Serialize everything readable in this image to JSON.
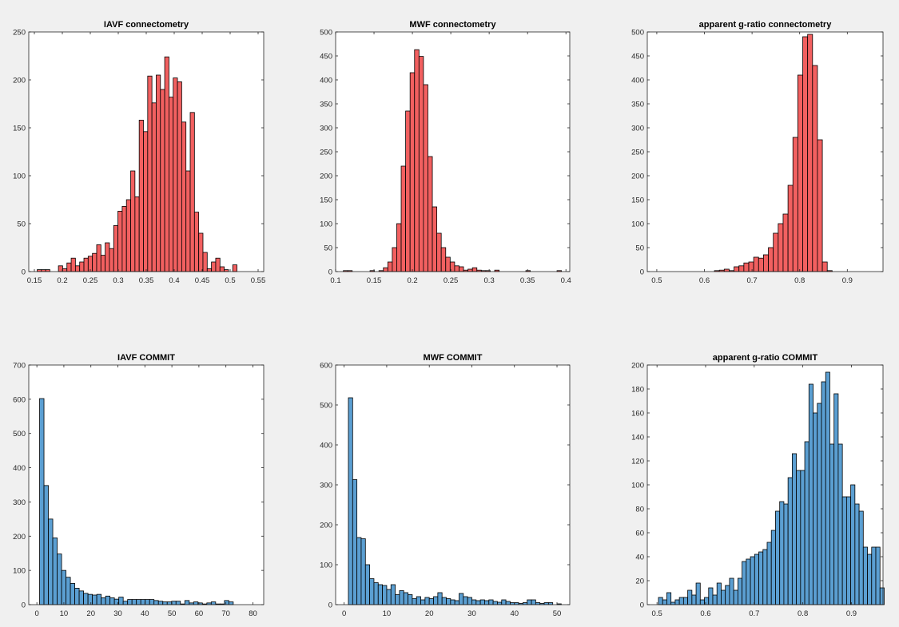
{
  "colors": {
    "red": "#f26060",
    "blue": "#5b9fd2",
    "edge": "#000000",
    "axes_bg": "#ffffff",
    "figure_bg": "#f0f0f0"
  },
  "chart_data": [
    {
      "type": "bar",
      "title": "IAVF connectometry",
      "xlabel": "",
      "ylabel": "",
      "xlim": [
        0.14,
        0.56
      ],
      "ylim": [
        0,
        250
      ],
      "xticks": [
        0.15,
        0.2,
        0.25,
        0.3,
        0.35,
        0.4,
        0.45,
        0.5,
        0.55
      ],
      "xtick_labels": [
        "0.15",
        "0.2",
        "0.25",
        "0.3",
        "0.35",
        "0.4",
        "0.45",
        "0.5",
        "0.55"
      ],
      "yticks": [
        0,
        50,
        100,
        150,
        200,
        250
      ],
      "ytick_labels": [
        "0",
        "50",
        "100",
        "150",
        "200",
        "250"
      ],
      "color": "red",
      "bin_start": 0.155,
      "bin_width": 0.0076,
      "values": [
        2,
        2,
        2,
        0,
        0,
        6,
        3,
        9,
        14,
        6,
        10,
        14,
        16,
        19,
        28,
        17,
        30,
        24,
        48,
        63,
        68,
        75,
        105,
        78,
        158,
        146,
        204,
        176,
        205,
        190,
        224,
        182,
        202,
        198,
        156,
        105,
        166,
        62,
        40,
        20,
        3,
        10,
        14,
        5,
        2,
        0,
        7
      ]
    },
    {
      "type": "bar",
      "title": "MWF connectometry",
      "xlabel": "",
      "ylabel": "",
      "xlim": [
        0.1,
        0.405
      ],
      "ylim": [
        0,
        500
      ],
      "xticks": [
        0.1,
        0.15,
        0.2,
        0.25,
        0.3,
        0.35,
        0.4
      ],
      "xtick_labels": [
        "0.1",
        "0.15",
        "0.2",
        "0.25",
        "0.3",
        "0.35",
        "0.4"
      ],
      "yticks": [
        0,
        50,
        100,
        150,
        200,
        250,
        300,
        350,
        400,
        450,
        500
      ],
      "ytick_labels": [
        "0",
        "50",
        "100",
        "150",
        "200",
        "250",
        "300",
        "350",
        "400",
        "450",
        "500"
      ],
      "color": "red",
      "bin_start": 0.11,
      "bin_width": 0.0058,
      "values": [
        2,
        2,
        0,
        0,
        0,
        0,
        2,
        0,
        2,
        8,
        20,
        50,
        100,
        220,
        335,
        415,
        463,
        449,
        390,
        240,
        135,
        80,
        50,
        30,
        20,
        12,
        10,
        3,
        5,
        8,
        3,
        2,
        2,
        0,
        3,
        0,
        0,
        0,
        0,
        0,
        0,
        2,
        0,
        0,
        0,
        0,
        0,
        0,
        2,
        0
      ]
    },
    {
      "type": "bar",
      "title": "apparent g-ratio connectometry",
      "xlabel": "",
      "ylabel": "",
      "xlim": [
        0.48,
        0.975
      ],
      "ylim": [
        0,
        500
      ],
      "xticks": [
        0.5,
        0.6,
        0.7,
        0.8,
        0.9
      ],
      "xtick_labels": [
        "0.5",
        "0.6",
        "0.7",
        "0.8",
        "0.9"
      ],
      "yticks": [
        0,
        50,
        100,
        150,
        200,
        250,
        300,
        350,
        400,
        450,
        500
      ],
      "ytick_labels": [
        "0",
        "50",
        "100",
        "150",
        "200",
        "250",
        "300",
        "350",
        "400",
        "450",
        "500"
      ],
      "color": "red",
      "bin_start": 0.621,
      "bin_width": 0.0103,
      "values": [
        2,
        3,
        5,
        2,
        10,
        12,
        18,
        20,
        30,
        28,
        35,
        50,
        80,
        100,
        120,
        180,
        280,
        410,
        490,
        495,
        430,
        275,
        20,
        2
      ]
    },
    {
      "type": "bar",
      "title": "IAVF COMMIT",
      "xlabel": "",
      "ylabel": "",
      "xlim": [
        -3,
        84
      ],
      "ylim": [
        0,
        700
      ],
      "xticks": [
        0,
        10,
        20,
        30,
        40,
        50,
        60,
        70,
        80
      ],
      "xtick_labels": [
        "0",
        "10",
        "20",
        "30",
        "40",
        "50",
        "60",
        "70",
        "80"
      ],
      "yticks": [
        0,
        100,
        200,
        300,
        400,
        500,
        600,
        700
      ],
      "ytick_labels": [
        "0",
        "100",
        "200",
        "300",
        "400",
        "500",
        "600",
        "700"
      ],
      "color": "blue",
      "bin_start": 1.0,
      "bin_width": 1.63,
      "values": [
        602,
        348,
        250,
        195,
        148,
        100,
        80,
        62,
        48,
        40,
        33,
        30,
        28,
        30,
        20,
        25,
        20,
        16,
        22,
        10,
        15,
        15,
        15,
        15,
        15,
        15,
        12,
        10,
        8,
        8,
        10,
        10,
        2,
        12,
        5,
        8,
        5,
        2,
        5,
        8,
        2,
        2,
        12,
        8
      ]
    },
    {
      "type": "bar",
      "title": "MWF COMMIT",
      "xlabel": "",
      "ylabel": "",
      "xlim": [
        -2,
        53
      ],
      "ylim": [
        0,
        600
      ],
      "xticks": [
        0,
        10,
        20,
        30,
        40,
        50
      ],
      "xtick_labels": [
        "0",
        "10",
        "20",
        "30",
        "40",
        "50"
      ],
      "yticks": [
        0,
        100,
        200,
        300,
        400,
        500,
        600
      ],
      "ytick_labels": [
        "0",
        "100",
        "200",
        "300",
        "400",
        "500",
        "600"
      ],
      "color": "blue",
      "bin_start": 1.0,
      "bin_width": 1.0,
      "values": [
        518,
        313,
        168,
        165,
        100,
        65,
        55,
        50,
        48,
        38,
        50,
        25,
        35,
        30,
        25,
        15,
        20,
        12,
        18,
        15,
        20,
        30,
        18,
        15,
        12,
        10,
        28,
        20,
        18,
        12,
        10,
        12,
        10,
        12,
        8,
        6,
        12,
        8,
        5,
        5,
        3,
        5,
        12,
        12,
        5,
        3,
        5,
        5,
        0,
        2
      ]
    },
    {
      "type": "bar",
      "title": "apparent g-ratio COMMIT",
      "xlabel": "",
      "ylabel": "",
      "xlim": [
        0.48,
        0.965
      ],
      "ylim": [
        0,
        200
      ],
      "xticks": [
        0.5,
        0.6,
        0.7,
        0.8,
        0.9
      ],
      "xtick_labels": [
        "0.5",
        "0.6",
        "0.7",
        "0.8",
        "0.9"
      ],
      "yticks": [
        0,
        20,
        40,
        60,
        80,
        100,
        120,
        140,
        160,
        180,
        200
      ],
      "ytick_labels": [
        "0",
        "20",
        "40",
        "60",
        "80",
        "100",
        "120",
        "140",
        "160",
        "180",
        "200"
      ],
      "color": "blue",
      "bin_start": 0.503,
      "bin_width": 0.0086,
      "values": [
        6,
        4,
        10,
        2,
        4,
        6,
        6,
        12,
        8,
        18,
        4,
        6,
        14,
        8,
        18,
        12,
        16,
        22,
        12,
        22,
        36,
        38,
        40,
        42,
        44,
        46,
        52,
        62,
        78,
        86,
        84,
        106,
        126,
        112,
        112,
        136,
        184,
        160,
        168,
        186,
        194,
        134,
        176,
        134,
        90,
        90,
        100,
        84,
        78,
        48,
        42,
        48,
        48,
        14
      ]
    }
  ]
}
